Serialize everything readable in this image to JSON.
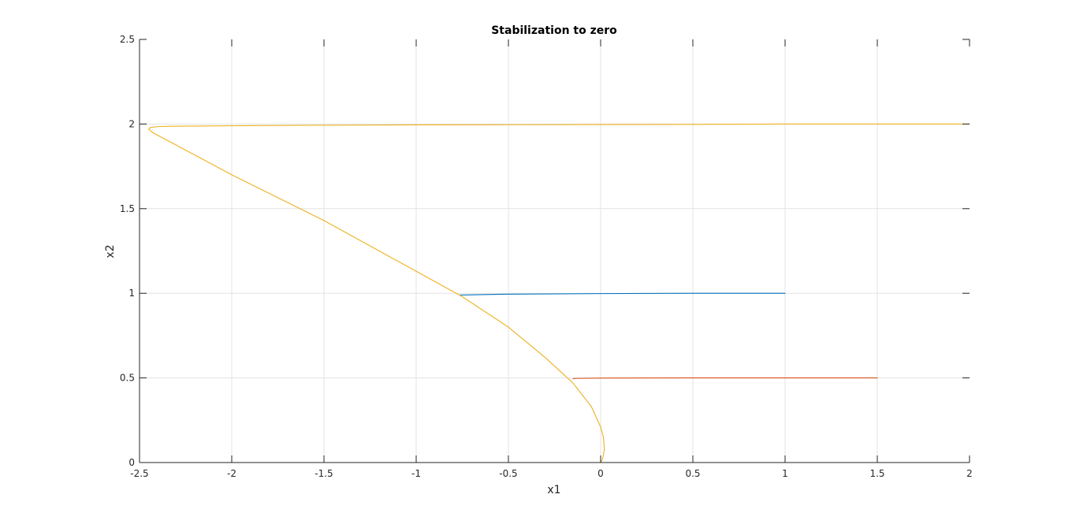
{
  "chart_data": {
    "type": "line",
    "title": "Stabilization to zero",
    "xlabel": "x1",
    "ylabel": "x2",
    "xlim": [
      -2.5,
      2
    ],
    "ylim": [
      0,
      2.5
    ],
    "xticks": [
      -2.5,
      -2,
      -1.5,
      -1,
      -0.5,
      0,
      0.5,
      1,
      1.5,
      2
    ],
    "xtick_labels": [
      "-2.5",
      "-2",
      "-1.5",
      "-1",
      "-0.5",
      "0",
      "0.5",
      "1",
      "1.5",
      "2"
    ],
    "yticks": [
      0,
      0.5,
      1,
      1.5,
      2,
      2.5
    ],
    "ytick_labels": [
      "0",
      "0.5",
      "1",
      "1.5",
      "2",
      "2.5"
    ],
    "grid": true,
    "series": [
      {
        "color": "#0072BD",
        "x": [
          1.0,
          0.5,
          0.0,
          -0.5,
          -0.74,
          -0.76
        ],
        "y": [
          1.0,
          1.0,
          0.998,
          0.995,
          0.99,
          0.99
        ]
      },
      {
        "color": "#D95319",
        "x": [
          1.5,
          1.0,
          0.5,
          0.0,
          -0.14,
          -0.15
        ],
        "y": [
          0.5,
          0.5,
          0.5,
          0.499,
          0.497,
          0.495
        ]
      },
      {
        "color": "#EDB120",
        "x": [
          2.0,
          1.5,
          1.0,
          0.5,
          0.0,
          -0.5,
          -1.0,
          -1.5,
          -2.0,
          -2.2,
          -2.33,
          -2.4,
          -2.44,
          -2.45,
          -2.43,
          -2.3,
          -2.0,
          -1.5,
          -1.0,
          -0.75,
          -0.5,
          -0.3,
          -0.15,
          -0.05,
          0.0,
          0.015,
          0.02,
          0.015,
          0.01,
          0.005,
          0.0
        ],
        "y": [
          2.0,
          2.0,
          2.0,
          1.998,
          1.997,
          1.996,
          1.995,
          1.993,
          1.99,
          1.988,
          1.987,
          1.985,
          1.98,
          1.97,
          1.95,
          1.875,
          1.7,
          1.43,
          1.13,
          0.98,
          0.8,
          0.62,
          0.47,
          0.33,
          0.21,
          0.15,
          0.08,
          0.045,
          0.02,
          0.008,
          0.0
        ]
      }
    ]
  }
}
